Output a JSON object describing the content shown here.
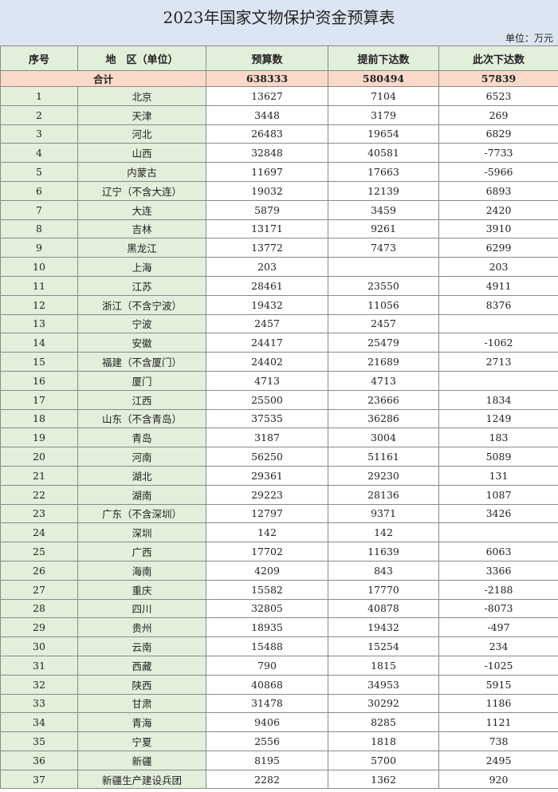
{
  "title": "2023年国家文物保护资金预算表",
  "unit": "单位：万元",
  "headers": [
    "序号",
    "地　区（单位）",
    "预算数",
    "提前下达数",
    "此次下达数"
  ],
  "total": {
    "label": "合计",
    "budget": "638333",
    "advance": "580494",
    "current": "57839"
  },
  "rows": [
    [
      "1",
      "北京",
      "13627",
      "7104",
      "6523"
    ],
    [
      "2",
      "天津",
      "3448",
      "3179",
      "269"
    ],
    [
      "3",
      "河北",
      "26483",
      "19654",
      "6829"
    ],
    [
      "4",
      "山西",
      "32848",
      "40581",
      "-7733"
    ],
    [
      "5",
      "内蒙古",
      "11697",
      "17663",
      "-5966"
    ],
    [
      "6",
      "辽宁（不含大连）",
      "19032",
      "12139",
      "6893"
    ],
    [
      "7",
      "大连",
      "5879",
      "3459",
      "2420"
    ],
    [
      "8",
      "吉林",
      "13171",
      "9261",
      "3910"
    ],
    [
      "9",
      "黑龙江",
      "13772",
      "7473",
      "6299"
    ],
    [
      "10",
      "上海",
      "203",
      "",
      "203"
    ],
    [
      "11",
      "江苏",
      "28461",
      "23550",
      "4911"
    ],
    [
      "12",
      "浙江（不含宁波）",
      "19432",
      "11056",
      "8376"
    ],
    [
      "13",
      "宁波",
      "2457",
      "2457",
      ""
    ],
    [
      "14",
      "安徽",
      "24417",
      "25479",
      "-1062"
    ],
    [
      "15",
      "福建（不含厦门）",
      "24402",
      "21689",
      "2713"
    ],
    [
      "16",
      "厦门",
      "4713",
      "4713",
      ""
    ],
    [
      "17",
      "江西",
      "25500",
      "23666",
      "1834"
    ],
    [
      "18",
      "山东（不含青岛）",
      "37535",
      "36286",
      "1249"
    ],
    [
      "19",
      "青岛",
      "3187",
      "3004",
      "183"
    ],
    [
      "20",
      "河南",
      "56250",
      "51161",
      "5089"
    ],
    [
      "21",
      "湖北",
      "29361",
      "29230",
      "131"
    ],
    [
      "22",
      "湖南",
      "29223",
      "28136",
      "1087"
    ],
    [
      "23",
      "广东（不含深圳）",
      "12797",
      "9371",
      "3426"
    ],
    [
      "24",
      "深圳",
      "142",
      "142",
      ""
    ],
    [
      "25",
      "广西",
      "17702",
      "11639",
      "6063"
    ],
    [
      "26",
      "海南",
      "4209",
      "843",
      "3366"
    ],
    [
      "27",
      "重庆",
      "15582",
      "17770",
      "-2188"
    ],
    [
      "28",
      "四川",
      "32805",
      "40878",
      "-8073"
    ],
    [
      "29",
      "贵州",
      "18935",
      "19432",
      "-497"
    ],
    [
      "30",
      "云南",
      "15488",
      "15254",
      "234"
    ],
    [
      "31",
      "西藏",
      "790",
      "1815",
      "-1025"
    ],
    [
      "32",
      "陕西",
      "40868",
      "34953",
      "5915"
    ],
    [
      "33",
      "甘肃",
      "31478",
      "30292",
      "1186"
    ],
    [
      "34",
      "青海",
      "9406",
      "8285",
      "1121"
    ],
    [
      "35",
      "宁夏",
      "2556",
      "1818",
      "738"
    ],
    [
      "36",
      "新疆",
      "8195",
      "5700",
      "2495"
    ],
    [
      "37",
      "新疆生产建设兵团",
      "2282",
      "1362",
      "920"
    ]
  ],
  "colors": {
    "title_bg": "#dce6f2",
    "header_bg": "#e2efda",
    "total_bg": "#fbd9c8"
  }
}
